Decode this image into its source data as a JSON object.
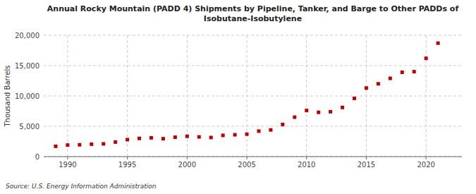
{
  "chart_data": {
    "type": "scatter",
    "title": "Annual Rocky Mountain (PADD 4) Shipments by Pipeline, Tanker, and Barge to Other PADDs of\nIsobutane-Isobutylene",
    "ylabel": "Thousand Barrels",
    "source": "Source: U.S. Energy Information Administration",
    "x": [
      1989,
      1990,
      1991,
      1992,
      1993,
      1994,
      1995,
      1996,
      1997,
      1998,
      1999,
      2000,
      2001,
      2002,
      2003,
      2004,
      2005,
      2006,
      2007,
      2008,
      2009,
      2010,
      2011,
      2012,
      2013,
      2014,
      2015,
      2016,
      2017,
      2018,
      2019,
      2020,
      2021
    ],
    "values": [
      1700,
      1900,
      1950,
      2050,
      2100,
      2400,
      2800,
      3000,
      3100,
      2950,
      3200,
      3350,
      3250,
      3150,
      3500,
      3600,
      3700,
      4200,
      4400,
      5300,
      6500,
      7600,
      7300,
      7400,
      8100,
      9600,
      11300,
      12000,
      12900,
      13900,
      14000,
      16200,
      18700
    ],
    "color": "#c00000",
    "marker": "square",
    "xlim": [
      1988,
      2023
    ],
    "xticks": [
      1990,
      1995,
      2000,
      2005,
      2010,
      2015,
      2020
    ],
    "ylim": [
      0,
      20000
    ],
    "yticks": [
      0,
      {
        "value": 5000,
        "label": "5,000"
      },
      {
        "value": 10000,
        "label": "10,000"
      },
      {
        "value": 15000,
        "label": "15,000"
      },
      {
        "value": 20000,
        "label": "20,000"
      }
    ],
    "grid": true
  }
}
